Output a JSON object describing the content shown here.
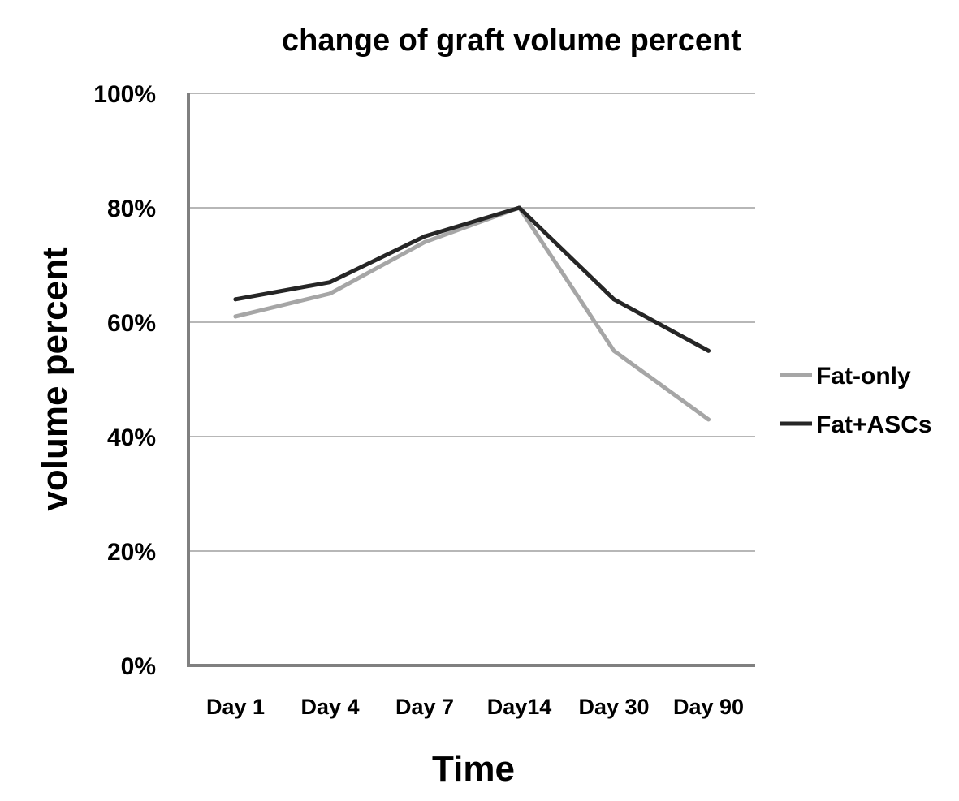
{
  "chart_data": {
    "type": "line",
    "title": "change of graft volume percent",
    "xlabel": "Time",
    "ylabel": "volume percent",
    "categories": [
      "Day 1",
      "Day 4",
      "Day 7",
      "Day14",
      "Day 30",
      "Day 90"
    ],
    "ylim": [
      0,
      100
    ],
    "yticks": [
      0,
      20,
      40,
      60,
      80,
      100
    ],
    "ytick_labels": [
      "0%",
      "20%",
      "40%",
      "60%",
      "80%",
      "100%"
    ],
    "grid": true,
    "legend_position": "right",
    "series": [
      {
        "name": "Fat-only",
        "values": [
          61,
          65,
          74,
          80,
          55,
          43
        ],
        "color": "#a6a6a6"
      },
      {
        "name": "Fat+ASCs",
        "values": [
          64,
          67,
          75,
          80,
          64,
          55
        ],
        "color": "#262626"
      }
    ]
  }
}
